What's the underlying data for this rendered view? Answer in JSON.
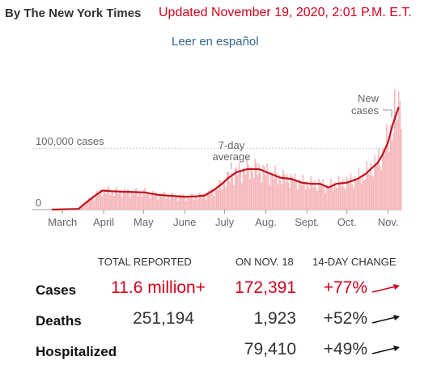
{
  "header": {
    "byline": "By The New York Times",
    "updated": "Updated November 19, 2020, 2:01 P.M. E.T.",
    "language_link": "Leer en español"
  },
  "colors": {
    "accent": "#d0021b",
    "link": "#326891",
    "bars": "#f6b6b9",
    "trend": "#c0101a"
  },
  "chart_data": {
    "type": "bar",
    "annotations": {
      "new_cases": [
        "New",
        "cases"
      ],
      "avg": [
        "7-day",
        "average"
      ],
      "y_label": "100,000 cases",
      "zero": "0"
    },
    "x_ticks": [
      "March",
      "April",
      "May",
      "June",
      "July",
      "Aug.",
      "Sept.",
      "Oct.",
      "Nov."
    ],
    "ylim": [
      0,
      190000
    ],
    "y_gridline": 100000,
    "x_domain_days": [
      0,
      263
    ],
    "tick_days": [
      8,
      39,
      69,
      100,
      130,
      161,
      192,
      222,
      253
    ],
    "average_series": {
      "name": "7-day average",
      "days": [
        0,
        20,
        25,
        32,
        38,
        45,
        55,
        70,
        80,
        92,
        100,
        108,
        115,
        122,
        128,
        133,
        139,
        147,
        156,
        165,
        172,
        180,
        188,
        195,
        202,
        208,
        214,
        222,
        230,
        236,
        240,
        245,
        249,
        253,
        256,
        259,
        261
      ],
      "values": [
        0,
        1000,
        10000,
        22000,
        31000,
        30000,
        29000,
        28000,
        24000,
        22000,
        21000,
        21500,
        23000,
        32000,
        42000,
        52000,
        61000,
        66000,
        66000,
        58000,
        52000,
        50000,
        44000,
        42000,
        42000,
        36000,
        42000,
        44000,
        50000,
        58000,
        66000,
        76000,
        90000,
        110000,
        135000,
        155000,
        167000
      ]
    },
    "daily_peak": 177000
  },
  "table": {
    "headers": {
      "total": "TOTAL REPORTED",
      "on": "ON NOV. 18",
      "change": "14-DAY CHANGE"
    },
    "rows": [
      {
        "label": "Cases",
        "total": "11.6 million+",
        "day": "172,391",
        "change": "+77%",
        "color": "#d0021b"
      },
      {
        "label": "Deaths",
        "total": "251,194",
        "day": "1,923",
        "change": "+52%",
        "color": "#121212"
      },
      {
        "label": "Hospitalized",
        "total": "",
        "day": "79,410",
        "change": "+49%",
        "color": "#121212"
      }
    ]
  }
}
